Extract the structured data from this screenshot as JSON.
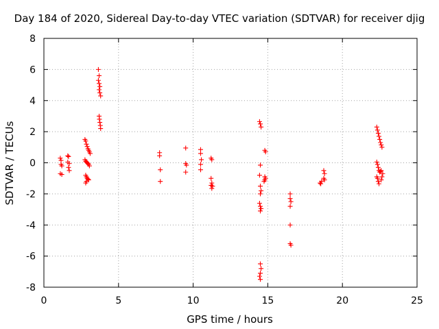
{
  "chart_data": {
    "type": "scatter",
    "title": "Day 184 of 2020, Sidereal Day-to-day VTEC variation (SDTVAR) for receiver djig",
    "xlabel": "GPS time / hours",
    "ylabel": "SDTVAR / TECUs",
    "xlim": [
      0,
      25
    ],
    "ylim": [
      -8,
      8
    ],
    "xticks": [
      0,
      5,
      10,
      15,
      20,
      25
    ],
    "yticks": [
      -8,
      -6,
      -4,
      -2,
      0,
      2,
      4,
      6,
      8
    ],
    "grid": true,
    "marker": "+",
    "colors": {
      "points": "#ff0000",
      "grid": "#a0a0a0",
      "axis": "#000000"
    },
    "series": [
      {
        "name": "SDTVAR",
        "points": [
          [
            1.1,
            0.3
          ],
          [
            1.15,
            0.15
          ],
          [
            1.15,
            -0.1
          ],
          [
            1.2,
            -0.2
          ],
          [
            1.1,
            -0.7
          ],
          [
            1.2,
            -0.75
          ],
          [
            1.6,
            0.45
          ],
          [
            1.65,
            0.4
          ],
          [
            1.6,
            0.05
          ],
          [
            1.7,
            -0.05
          ],
          [
            1.65,
            -0.3
          ],
          [
            1.7,
            -0.5
          ],
          [
            2.75,
            1.5
          ],
          [
            2.8,
            1.4
          ],
          [
            2.85,
            1.2
          ],
          [
            2.9,
            1.05
          ],
          [
            2.95,
            0.9
          ],
          [
            3.0,
            0.8
          ],
          [
            3.05,
            0.7
          ],
          [
            3.1,
            0.6
          ],
          [
            2.75,
            0.2
          ],
          [
            2.8,
            0.1
          ],
          [
            2.85,
            0.05
          ],
          [
            2.9,
            0.0
          ],
          [
            2.95,
            -0.05
          ],
          [
            3.0,
            -0.1
          ],
          [
            3.05,
            -0.2
          ],
          [
            2.8,
            -0.8
          ],
          [
            2.85,
            -0.9
          ],
          [
            2.9,
            -1.0
          ],
          [
            2.95,
            -1.05
          ],
          [
            3.0,
            -1.1
          ],
          [
            2.85,
            -1.2
          ],
          [
            2.8,
            -1.3
          ],
          [
            3.65,
            6.0
          ],
          [
            3.7,
            5.6
          ],
          [
            3.65,
            5.3
          ],
          [
            3.7,
            5.1
          ],
          [
            3.75,
            4.9
          ],
          [
            3.7,
            4.7
          ],
          [
            3.75,
            4.5
          ],
          [
            3.8,
            4.3
          ],
          [
            3.7,
            3.0
          ],
          [
            3.72,
            2.8
          ],
          [
            3.75,
            2.6
          ],
          [
            3.78,
            2.4
          ],
          [
            3.8,
            2.2
          ],
          [
            7.75,
            0.65
          ],
          [
            7.75,
            0.45
          ],
          [
            7.8,
            -0.45
          ],
          [
            7.8,
            -1.2
          ],
          [
            9.5,
            0.95
          ],
          [
            9.5,
            -0.05
          ],
          [
            9.55,
            -0.15
          ],
          [
            9.5,
            -0.6
          ],
          [
            10.5,
            0.85
          ],
          [
            10.5,
            0.6
          ],
          [
            10.55,
            0.2
          ],
          [
            10.5,
            -0.1
          ],
          [
            10.5,
            -0.45
          ],
          [
            11.2,
            0.3
          ],
          [
            11.25,
            0.2
          ],
          [
            11.2,
            -1.0
          ],
          [
            11.25,
            -1.3
          ],
          [
            11.2,
            -1.45
          ],
          [
            11.3,
            -1.5
          ],
          [
            11.25,
            -1.65
          ],
          [
            14.45,
            2.65
          ],
          [
            14.5,
            2.5
          ],
          [
            14.55,
            2.3
          ],
          [
            14.5,
            -0.15
          ],
          [
            14.45,
            -0.8
          ],
          [
            14.5,
            -1.5
          ],
          [
            14.55,
            -1.8
          ],
          [
            14.5,
            -2.0
          ],
          [
            14.45,
            -2.6
          ],
          [
            14.5,
            -2.8
          ],
          [
            14.55,
            -2.95
          ],
          [
            14.5,
            -3.1
          ],
          [
            14.5,
            -6.5
          ],
          [
            14.55,
            -6.8
          ],
          [
            14.5,
            -7.1
          ],
          [
            14.45,
            -7.3
          ],
          [
            14.5,
            -7.5
          ],
          [
            14.8,
            0.8
          ],
          [
            14.85,
            0.7
          ],
          [
            14.8,
            -0.9
          ],
          [
            14.85,
            -1.0
          ],
          [
            14.8,
            -1.1
          ],
          [
            14.75,
            -1.2
          ],
          [
            16.5,
            -2.0
          ],
          [
            16.5,
            -2.3
          ],
          [
            16.55,
            -2.5
          ],
          [
            16.5,
            -2.8
          ],
          [
            16.5,
            -4.0
          ],
          [
            16.5,
            -5.2
          ],
          [
            16.55,
            -5.3
          ],
          [
            18.5,
            -1.3
          ],
          [
            18.55,
            -1.35
          ],
          [
            18.6,
            -1.2
          ],
          [
            18.75,
            -0.5
          ],
          [
            18.8,
            -0.7
          ],
          [
            18.75,
            -1.0
          ],
          [
            18.8,
            -1.1
          ],
          [
            22.3,
            2.3
          ],
          [
            22.35,
            2.1
          ],
          [
            22.4,
            1.9
          ],
          [
            22.45,
            1.7
          ],
          [
            22.5,
            1.5
          ],
          [
            22.55,
            1.3
          ],
          [
            22.6,
            1.15
          ],
          [
            22.65,
            1.0
          ],
          [
            22.3,
            0.05
          ],
          [
            22.35,
            -0.1
          ],
          [
            22.4,
            -0.3
          ],
          [
            22.45,
            -0.5
          ],
          [
            22.5,
            -0.6
          ],
          [
            22.55,
            -0.55
          ],
          [
            22.6,
            -0.5
          ],
          [
            22.3,
            -0.9
          ],
          [
            22.35,
            -1.0
          ],
          [
            22.4,
            -1.2
          ],
          [
            22.45,
            -1.35
          ],
          [
            22.6,
            -1.1
          ],
          [
            22.65,
            -0.9
          ],
          [
            22.7,
            -0.7
          ]
        ]
      }
    ]
  }
}
